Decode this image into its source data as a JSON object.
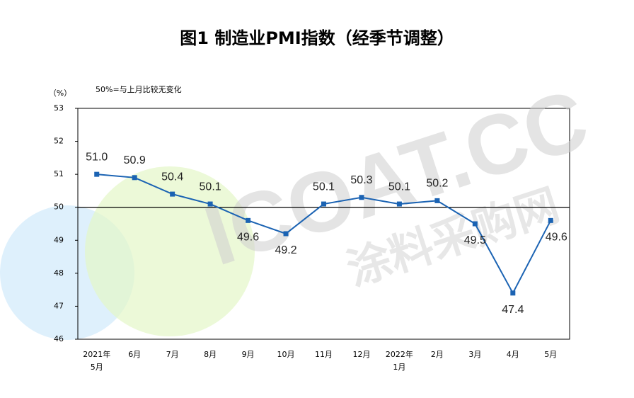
{
  "chart_data": {
    "type": "line",
    "title": "图1 制造业PMI指数（经季节调整）",
    "y_label": "（%）",
    "annotation": "50%=与上月比较无变化",
    "watermark": [
      "ICOAT.CC",
      "涂料采购网"
    ],
    "categories": [
      "2021年\n5月",
      "6月",
      "7月",
      "8月",
      "9月",
      "10月",
      "11月",
      "12月",
      "2022年\n1月",
      "2月",
      "3月",
      "4月",
      "5月"
    ],
    "values": [
      51.0,
      50.9,
      50.4,
      50.1,
      49.6,
      49.2,
      50.1,
      50.3,
      50.1,
      50.2,
      49.5,
      47.4,
      49.6
    ],
    "value_labels": [
      "51.0",
      "50.9",
      "50.4",
      "50.1",
      "49.6",
      "49.2",
      "50.1",
      "50.3",
      "50.1",
      "50.2",
      "49.5",
      "47.4",
      "49.6"
    ],
    "color": "#1b63b3",
    "reference_line": 50,
    "ylim": [
      46,
      53
    ],
    "yticks": [
      46,
      47,
      48,
      49,
      50,
      51,
      52,
      53
    ]
  }
}
